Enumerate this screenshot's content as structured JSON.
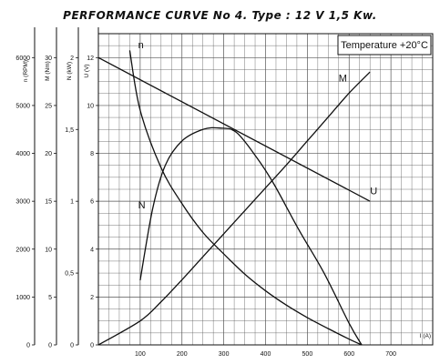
{
  "chart_data": {
    "title": "PERFORMANCE CURVE No 4.  Type : 12 V  1,5 Kw.",
    "annotation": "Temperature +20°C",
    "type": "line",
    "grid": true,
    "x_axis": {
      "label": "I (A)",
      "ticks": [
        100,
        200,
        300,
        400,
        500,
        600,
        700
      ],
      "range": [
        0,
        800
      ]
    },
    "y_axes": [
      {
        "label": "n (RPM)",
        "range": [
          0,
          6500
        ],
        "ticks": [
          0,
          1000,
          2000,
          3000,
          4000,
          5000,
          6000
        ]
      },
      {
        "label": "M (Nm)",
        "range": [
          0,
          32.5
        ],
        "ticks": [
          0,
          5,
          10,
          15,
          20,
          25,
          30
        ]
      },
      {
        "label": "N (kW)",
        "range": [
          0,
          2.167
        ],
        "ticks": [
          0,
          0.5,
          1,
          1.5,
          2
        ],
        "tick_labels": [
          "0",
          "0,5",
          "1",
          "1,5",
          "2"
        ]
      },
      {
        "label": "U (V)",
        "range": [
          0,
          13
        ],
        "ticks": [
          0,
          2,
          4,
          6,
          8,
          10,
          12
        ]
      }
    ],
    "series": [
      {
        "name": "n",
        "axis": "n (RPM)",
        "x": [
          75,
          100,
          150,
          200,
          250,
          300,
          350,
          400,
          450,
          500,
          550,
          600,
          630
        ],
        "y": [
          6150,
          4900,
          3700,
          2950,
          2350,
          1900,
          1480,
          1130,
          830,
          570,
          340,
          120,
          0
        ]
      },
      {
        "name": "M",
        "axis": "M (Nm)",
        "x": [
          0,
          100,
          150,
          200,
          250,
          300,
          350,
          400,
          450,
          500,
          550,
          600,
          650
        ],
        "y": [
          0,
          2.5,
          4.5,
          6.8,
          9.2,
          11.6,
          14.0,
          16.4,
          18.8,
          21.3,
          23.8,
          26.3,
          28.5
        ]
      },
      {
        "name": "N",
        "axis": "N (kW)",
        "x": [
          100,
          130,
          160,
          200,
          250,
          290,
          330,
          380,
          420,
          480,
          540,
          600,
          630
        ],
        "y": [
          0.45,
          0.95,
          1.25,
          1.42,
          1.5,
          1.51,
          1.48,
          1.3,
          1.12,
          0.8,
          0.5,
          0.15,
          0
        ]
      },
      {
        "name": "U",
        "axis": "U (V)",
        "x": [
          0,
          650
        ],
        "y": [
          12,
          6
        ]
      }
    ]
  }
}
